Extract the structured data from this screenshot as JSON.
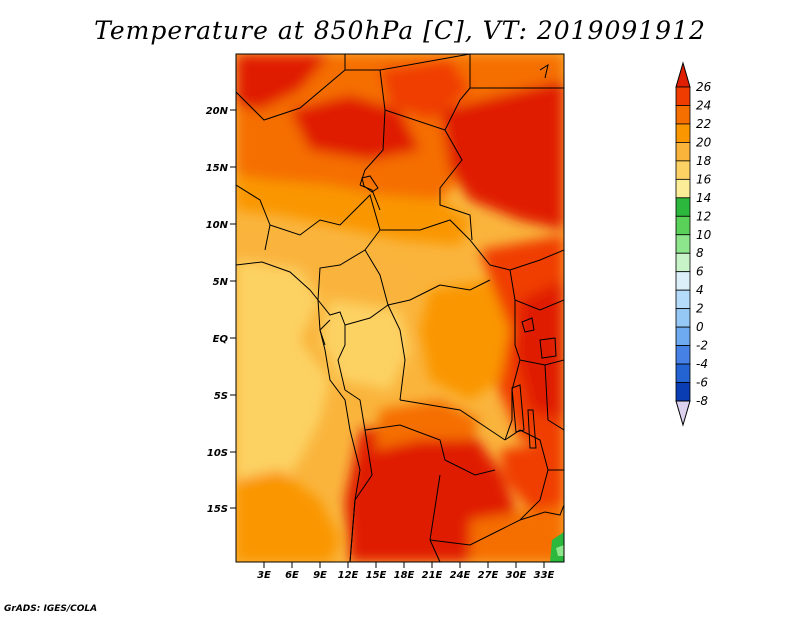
{
  "title": "Temperature at 850hPa [C], VT: 2019091912",
  "credit": "GrADS: IGES/COLA",
  "map": {
    "lat_labels": [
      "20N",
      "15N",
      "10N",
      "5N",
      "EQ",
      "5S",
      "10S",
      "15S"
    ],
    "lon_labels": [
      "3E",
      "6E",
      "9E",
      "12E",
      "15E",
      "18E",
      "21E",
      "24E",
      "27E",
      "30E",
      "33E"
    ],
    "variable": "Temperature at 850hPa",
    "units": "C"
  },
  "colorbar": {
    "levels": [
      "26",
      "24",
      "22",
      "20",
      "18",
      "16",
      "14",
      "12",
      "10",
      "8",
      "6",
      "4",
      "2",
      "0",
      "-2",
      "-4",
      "-6",
      "-8"
    ],
    "colors": [
      "#e01e00",
      "#f03c00",
      "#f56e00",
      "#fa9600",
      "#fab43c",
      "#fcd264",
      "#fcee98",
      "#2bb83c",
      "#5ad25a",
      "#8ee68c",
      "#c8f2c8",
      "#dcf0fa",
      "#b4dcfa",
      "#96c8f5",
      "#6eaaf0",
      "#4682e6",
      "#2364d2",
      "#0a3cb4",
      "#000a78",
      "#dcd2f0"
    ]
  }
}
